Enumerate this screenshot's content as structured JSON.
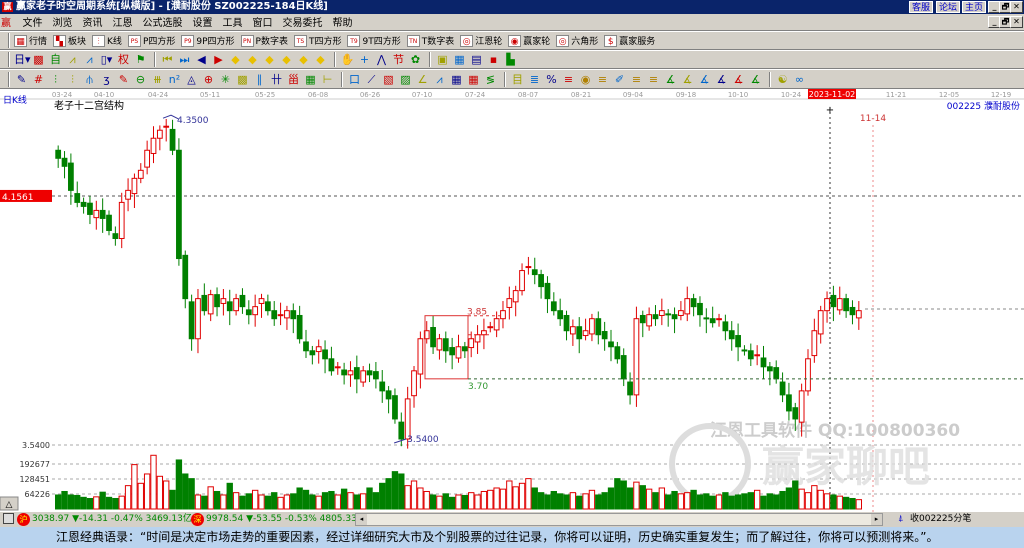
{
  "window": {
    "title": "赢家老子时空周期系统[纵横版] - [濮耐股份   SZ002225-184日K线]",
    "links": [
      "客服",
      "论坛",
      "主页"
    ],
    "controls": [
      "_",
      "🗗",
      "✕"
    ]
  },
  "menu": [
    "文件",
    "浏览",
    "资讯",
    "江恩",
    "公式选股",
    "设置",
    "工具",
    "窗口",
    "交易委托",
    "帮助"
  ],
  "toolbar1": [
    {
      "icon": "grid-icon",
      "glyph": "▦",
      "label": "行情"
    },
    {
      "icon": "blocks-icon",
      "glyph": "▚",
      "label": "板块"
    },
    {
      "icon": "kline-icon",
      "glyph": "⫶",
      "label": "K线"
    },
    {
      "icon": "ps-icon",
      "glyph": "PS",
      "label": "P四方形"
    },
    {
      "icon": "p9-icon",
      "glyph": "P9",
      "label": "9P四方形"
    },
    {
      "icon": "pn-icon",
      "glyph": "PN",
      "label": "P数字表"
    },
    {
      "icon": "ts-icon",
      "glyph": "TS",
      "label": "T四方形"
    },
    {
      "icon": "t9-icon",
      "glyph": "T9",
      "label": "9T四方形"
    },
    {
      "icon": "tn-icon",
      "glyph": "TN",
      "label": "T数字表"
    },
    {
      "icon": "gann-wheel-icon",
      "glyph": "◎",
      "label": "江恩轮"
    },
    {
      "icon": "winner-wheel-icon",
      "glyph": "◉",
      "label": "赢家轮"
    },
    {
      "icon": "hexagon-icon",
      "glyph": "◎",
      "label": "六角形"
    },
    {
      "icon": "dollar-icon",
      "glyph": "$",
      "label": "赢家服务"
    }
  ],
  "toolbar2": [
    {
      "icon": "day-period-icon",
      "glyph": "日▾"
    },
    {
      "icon": "chart-type-icon",
      "glyph": "▩"
    },
    {
      "icon": "self-select-icon",
      "glyph": "自"
    },
    {
      "icon": "indicator-icon",
      "glyph": "⩘"
    },
    {
      "icon": "indicator2-icon",
      "glyph": "⩘"
    },
    {
      "icon": "candle-icon",
      "glyph": "▯▾"
    },
    {
      "icon": "rights-icon",
      "glyph": "权"
    },
    {
      "icon": "flag-icon",
      "glyph": "⚑"
    },
    {
      "icon": "first-icon",
      "glyph": "⏮"
    },
    {
      "icon": "last-icon",
      "glyph": "⏭"
    },
    {
      "icon": "left-icon",
      "glyph": "◀"
    },
    {
      "icon": "right-icon",
      "glyph": "▶"
    },
    {
      "icon": "up-diamond-icon",
      "glyph": "◆"
    },
    {
      "icon": "down-diamond-icon",
      "glyph": "◆"
    },
    {
      "icon": "zoom-in-diamond-icon",
      "glyph": "◆"
    },
    {
      "icon": "zoom-out-diamond-icon",
      "glyph": "◆"
    },
    {
      "icon": "move-diamond-icon",
      "glyph": "◆"
    },
    {
      "icon": "expand-diamond-icon",
      "glyph": "◆"
    },
    {
      "icon": "hand-icon",
      "glyph": "✋"
    },
    {
      "icon": "crosshair-icon",
      "glyph": "+"
    },
    {
      "icon": "zigzag-icon",
      "glyph": "⋀"
    },
    {
      "icon": "festival-icon",
      "glyph": "节"
    },
    {
      "icon": "cycle-icon",
      "glyph": "✿"
    },
    {
      "icon": "calendar-icon",
      "glyph": "▣"
    },
    {
      "icon": "calculator-icon",
      "glyph": "▦"
    },
    {
      "icon": "notes-icon",
      "glyph": "▤"
    },
    {
      "icon": "save-icon",
      "glyph": "▪"
    },
    {
      "icon": "truck-icon",
      "glyph": "▙"
    }
  ],
  "toolbar3": [
    {
      "icon": "pen-icon",
      "glyph": "✎"
    },
    {
      "icon": "hash-icon",
      "glyph": "#"
    },
    {
      "icon": "gann-fan-icon",
      "glyph": "⫶"
    },
    {
      "icon": "gann-grid-icon",
      "glyph": "⫶"
    },
    {
      "icon": "fork-icon",
      "glyph": "⫛"
    },
    {
      "icon": "spiral-icon",
      "glyph": "ʒ"
    },
    {
      "icon": "pencil-red-icon",
      "glyph": "✎"
    },
    {
      "icon": "circle-line-icon",
      "glyph": "⊖"
    },
    {
      "icon": "lines-icon",
      "glyph": "⧻"
    },
    {
      "icon": "n2-icon",
      "glyph": "n²"
    },
    {
      "icon": "triangle-icon",
      "glyph": "◬"
    },
    {
      "icon": "target-icon",
      "glyph": "⊕"
    },
    {
      "icon": "star-icon",
      "glyph": "✳"
    },
    {
      "icon": "box-icon",
      "glyph": "▩"
    },
    {
      "icon": "angle-icon",
      "glyph": "∥"
    },
    {
      "icon": "fib-icon",
      "glyph": "卄"
    },
    {
      "icon": "fib-box-icon",
      "glyph": "甾"
    },
    {
      "icon": "grid-box-icon",
      "glyph": "▦"
    },
    {
      "icon": "range-icon",
      "glyph": "⊢"
    },
    {
      "icon": "rect-icon",
      "glyph": "口"
    },
    {
      "icon": "rays-icon",
      "glyph": "⟋"
    },
    {
      "icon": "box-diag-icon",
      "glyph": "▧"
    },
    {
      "icon": "box-fill-icon",
      "glyph": "▨"
    },
    {
      "icon": "angle2-icon",
      "glyph": "∠"
    },
    {
      "icon": "wave-icon",
      "glyph": "⩘"
    },
    {
      "icon": "grid2-icon",
      "glyph": "▦"
    },
    {
      "icon": "grid3-icon",
      "glyph": "▦"
    },
    {
      "icon": "slash-icon",
      "glyph": "≶"
    },
    {
      "icon": "cal-grid-icon",
      "glyph": "目"
    },
    {
      "icon": "pct-fan-icon",
      "glyph": "≣"
    },
    {
      "icon": "percent-icon",
      "glyph": "%"
    },
    {
      "icon": "pct-box-icon",
      "glyph": "≡"
    },
    {
      "icon": "gold-coin-icon",
      "glyph": "◉"
    },
    {
      "icon": "gold-lines-icon",
      "glyph": "≡"
    },
    {
      "icon": "pen2-icon",
      "glyph": "✐"
    },
    {
      "icon": "gold-lines2-icon",
      "glyph": "≡"
    },
    {
      "icon": "gold-box-icon",
      "glyph": "≡"
    },
    {
      "icon": "angles1-icon",
      "glyph": "∡"
    },
    {
      "icon": "angles2-icon",
      "glyph": "∡"
    },
    {
      "icon": "angles3-icon",
      "glyph": "∡"
    },
    {
      "icon": "angles4-icon",
      "glyph": "∡"
    },
    {
      "icon": "angles5-icon",
      "glyph": "∡"
    },
    {
      "icon": "angles6-icon",
      "glyph": "∡"
    },
    {
      "icon": "yinyang-icon",
      "glyph": "☯"
    },
    {
      "icon": "infinity-icon",
      "glyph": "∞"
    }
  ],
  "chart": {
    "period_label": "日K线",
    "study_title": "老子十二宫结构",
    "stock": "002225  濮耐股份",
    "cursor_price": "4.1561",
    "cursor_date": "2023-11-02",
    "marker_date": "11-14",
    "high_label": "4.3500",
    "low_label": "3.5400",
    "box_high": "3.85",
    "box_low": "3.70",
    "axis_price_label": "3.5400",
    "volume_ticks": [
      "192677",
      "128451",
      "64226"
    ],
    "dates": [
      "03-24",
      "04-10",
      "04-24",
      "05-11",
      "05-25",
      "06-08",
      "06-26",
      "07-10",
      "07-24",
      "08-07",
      "08-21",
      "09-04",
      "09-18",
      "10-10",
      "10-24",
      "11-21",
      "12-05",
      "12-19"
    ],
    "watermark1": "江恩工具软件  QQ:100800360",
    "watermark2": "赢家聊吧",
    "colors": {
      "up": "#e00000",
      "down": "#008000",
      "axis": "#909090"
    }
  },
  "chart_data": {
    "type": "candlestick",
    "close": [
      4.25,
      4.23,
      4.17,
      4.14,
      4.13,
      4.11,
      4.12,
      4.1,
      4.07,
      4.05,
      4.14,
      4.17,
      4.2,
      4.22,
      4.27,
      4.3,
      4.32,
      4.33,
      4.27,
      4.0,
      3.9,
      3.8,
      3.9,
      3.87,
      3.91,
      3.88,
      3.9,
      3.87,
      3.9,
      3.88,
      3.86,
      3.88,
      3.9,
      3.87,
      3.85,
      3.86,
      3.87,
      3.85,
      3.8,
      3.77,
      3.76,
      3.78,
      3.75,
      3.72,
      3.73,
      3.71,
      3.72,
      3.7,
      3.72,
      3.71,
      3.7,
      3.67,
      3.65,
      3.6,
      3.55,
      3.65,
      3.72,
      3.8,
      3.82,
      3.78,
      3.8,
      3.77,
      3.76,
      3.78,
      3.77,
      3.8,
      3.81,
      3.82,
      3.83,
      3.85,
      3.87,
      3.9,
      3.92,
      3.97,
      3.98,
      3.96,
      3.93,
      3.9,
      3.87,
      3.85,
      3.82,
      3.83,
      3.8,
      3.82,
      3.85,
      3.81,
      3.8,
      3.78,
      3.75,
      3.7,
      3.66,
      3.85,
      3.84,
      3.86,
      3.85,
      3.87,
      3.86,
      3.85,
      3.87,
      3.9,
      3.88,
      3.86,
      3.85,
      3.84,
      3.85,
      3.82,
      3.8,
      3.78,
      3.77,
      3.75,
      3.76,
      3.73,
      3.72,
      3.7,
      3.66,
      3.62,
      3.6,
      3.67,
      3.75,
      3.82,
      3.87,
      3.9,
      3.88,
      3.9,
      3.87,
      3.86,
      3.87
    ],
    "volume": [
      60,
      75,
      60,
      58,
      50,
      45,
      52,
      72,
      50,
      45,
      55,
      100,
      190,
      110,
      150,
      230,
      140,
      120,
      80,
      210,
      150,
      130,
      60,
      55,
      95,
      75,
      60,
      110,
      70,
      55,
      65,
      80,
      60,
      55,
      70,
      50,
      60,
      65,
      90,
      80,
      60,
      55,
      70,
      75,
      60,
      85,
      70,
      60,
      65,
      90,
      70,
      110,
      130,
      160,
      150,
      100,
      120,
      90,
      75,
      60,
      55,
      65,
      50,
      60,
      58,
      70,
      60,
      75,
      80,
      90,
      85,
      120,
      95,
      110,
      130,
      90,
      70,
      60,
      75,
      65,
      60,
      70,
      55,
      65,
      80,
      60,
      70,
      90,
      130,
      120,
      90,
      115,
      100,
      85,
      70,
      90,
      60,
      75,
      65,
      70,
      80,
      60,
      65,
      55,
      60,
      70,
      55,
      60,
      65,
      70,
      80,
      55,
      65,
      60,
      75,
      90,
      120,
      85,
      70,
      100,
      80,
      65,
      60,
      55,
      50,
      45,
      40
    ],
    "ylim": [
      3.5,
      4.42
    ],
    "price_labels": {
      "high": 4.35,
      "low": 3.54,
      "box_high": 3.85,
      "box_low": 3.7,
      "cursor": 4.1561
    }
  },
  "status": {
    "sh_index": "3038.97",
    "sh_change": "▼-14.31",
    "sh_pct": "-0.47%",
    "sh_amount": "3469.13亿",
    "sz_index": "9978.54",
    "sz_change": "▼-53.55",
    "sz_pct": "-0.53%",
    "sz_amount": "4805.33",
    "right_text": "收002225分笔"
  },
  "quote": "江恩经典语录：“时间是决定市场走势的重要因素，经过详细研究大市及个别股票的过往记录，你将可以证明，历史确实重复发生；而了解过往，你将可以预测将来。”。"
}
